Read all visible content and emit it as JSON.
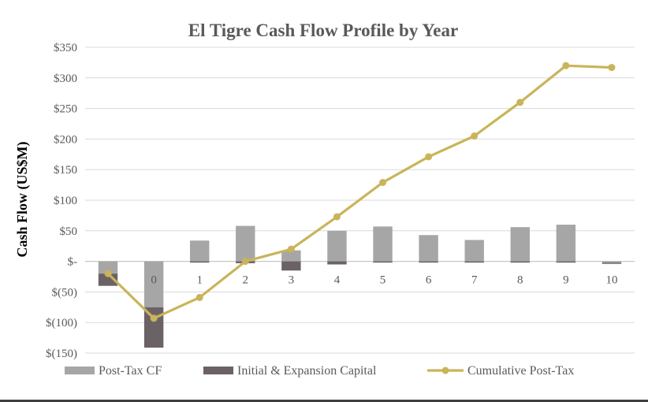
{
  "chart_data": {
    "type": "bar",
    "title": "El Tigre Cash Flow Profile by Year",
    "ylabel": "Cash Flow (US$M)",
    "xlabel": "",
    "categories": [
      "",
      "0",
      "1",
      "2",
      "3",
      "4",
      "5",
      "6",
      "7",
      "8",
      "9",
      "10"
    ],
    "y_tick_labels": [
      "$350",
      "$300",
      "$250",
      "$200",
      "$150",
      "$100",
      "$50",
      "$-",
      "$(50)",
      "$(100)",
      "$(150)"
    ],
    "y_tick_values": [
      350,
      300,
      250,
      200,
      150,
      100,
      50,
      0,
      -50,
      -100,
      -150
    ],
    "ylim": [
      -150,
      350
    ],
    "grid": true,
    "legend_position": "bottom",
    "series": [
      {
        "name": "Post-Tax CF",
        "kind": "bar",
        "stacked": true,
        "color": "#a6a6a6",
        "values": [
          -20,
          -75,
          34,
          58,
          18,
          50,
          57,
          43,
          35,
          56,
          60,
          -2
        ]
      },
      {
        "name": "Initial & Expansion Capital",
        "kind": "bar",
        "stacked": true,
        "color": "#6b6266",
        "values": [
          -20,
          -66,
          -2,
          -3,
          -15,
          -5,
          -2,
          -2,
          -2,
          -2,
          -2,
          -2
        ]
      },
      {
        "name": "Cumulative Post-Tax",
        "kind": "line",
        "color": "#c9b45a",
        "values": [
          -20,
          -93,
          -59,
          0,
          20,
          73,
          129,
          171,
          205,
          260,
          320,
          317
        ]
      }
    ]
  }
}
